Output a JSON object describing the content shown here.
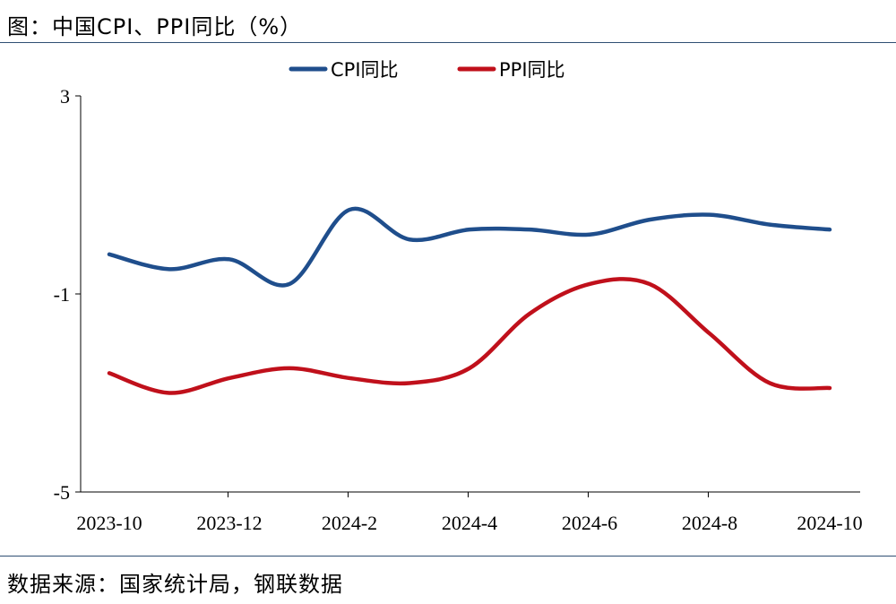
{
  "header": {
    "title": "图：中国CPI、PPI同比（%）"
  },
  "footer": {
    "source": "数据来源：国家统计局，钢联数据"
  },
  "chart_data": {
    "type": "line",
    "x": [
      "2023-10",
      "2023-11",
      "2023-12",
      "2024-1",
      "2024-2",
      "2024-3",
      "2024-4",
      "2024-5",
      "2024-6",
      "2024-7",
      "2024-8",
      "2024-9",
      "2024-10"
    ],
    "x_tick_labels": [
      "2023-10",
      "2023-12",
      "2024-2",
      "2024-4",
      "2024-6",
      "2024-8",
      "2024-10"
    ],
    "ylim": [
      -5,
      3
    ],
    "y_tick_labels": [
      "3",
      "-1",
      "-5"
    ],
    "legend_position": "top-center",
    "series": [
      {
        "name": "CPI同比",
        "color": "#1f4e8c",
        "values": [
          -0.2,
          -0.5,
          -0.3,
          -0.8,
          0.7,
          0.1,
          0.3,
          0.3,
          0.2,
          0.5,
          0.6,
          0.4,
          0.3
        ]
      },
      {
        "name": "PPI同比",
        "color": "#c0101b",
        "values": [
          -2.6,
          -3.0,
          -2.7,
          -2.5,
          -2.7,
          -2.8,
          -2.5,
          -1.4,
          -0.8,
          -0.8,
          -1.8,
          -2.8,
          -2.9
        ]
      }
    ]
  }
}
